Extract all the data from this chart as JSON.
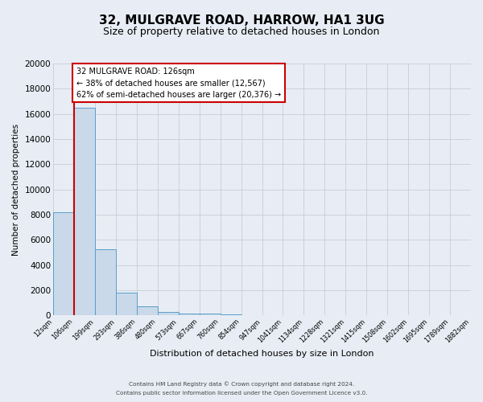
{
  "title": "32, MULGRAVE ROAD, HARROW, HA1 3UG",
  "subtitle": "Size of property relative to detached houses in London",
  "xlabel": "Distribution of detached houses by size in London",
  "ylabel": "Number of detached properties",
  "footer_line1": "Contains HM Land Registry data © Crown copyright and database right 2024.",
  "footer_line2": "Contains public sector information licensed under the Open Government Licence v3.0.",
  "bin_labels": [
    "12sqm",
    "106sqm",
    "199sqm",
    "293sqm",
    "386sqm",
    "480sqm",
    "573sqm",
    "667sqm",
    "760sqm",
    "854sqm",
    "947sqm",
    "1041sqm",
    "1134sqm",
    "1228sqm",
    "1321sqm",
    "1415sqm",
    "1508sqm",
    "1602sqm",
    "1695sqm",
    "1789sqm",
    "1882sqm"
  ],
  "bar_values": [
    8200,
    16500,
    5250,
    1800,
    750,
    290,
    130,
    130,
    100,
    0,
    0,
    0,
    0,
    0,
    0,
    0,
    0,
    0,
    0,
    0
  ],
  "ylim": [
    0,
    20000
  ],
  "yticks": [
    0,
    2000,
    4000,
    6000,
    8000,
    10000,
    12000,
    14000,
    16000,
    18000,
    20000
  ],
  "property_label": "32 MULGRAVE ROAD: 126sqm",
  "pct_smaller": 38,
  "n_smaller": 12567,
  "pct_larger_semi": 62,
  "n_larger_semi": 20376,
  "red_line_bin_idx": 1,
  "bar_color": "#c9d9ea",
  "bar_edge_color": "#5a9ec9",
  "red_line_color": "#cc0000",
  "grid_color": "#c5cdd8",
  "bg_color": "#e8edf5",
  "plot_bg_color": "#e8edf5",
  "ann_box_bg": "#ffffff",
  "ann_box_edge": "#cc0000",
  "title_fontsize": 11,
  "subtitle_fontsize": 9
}
